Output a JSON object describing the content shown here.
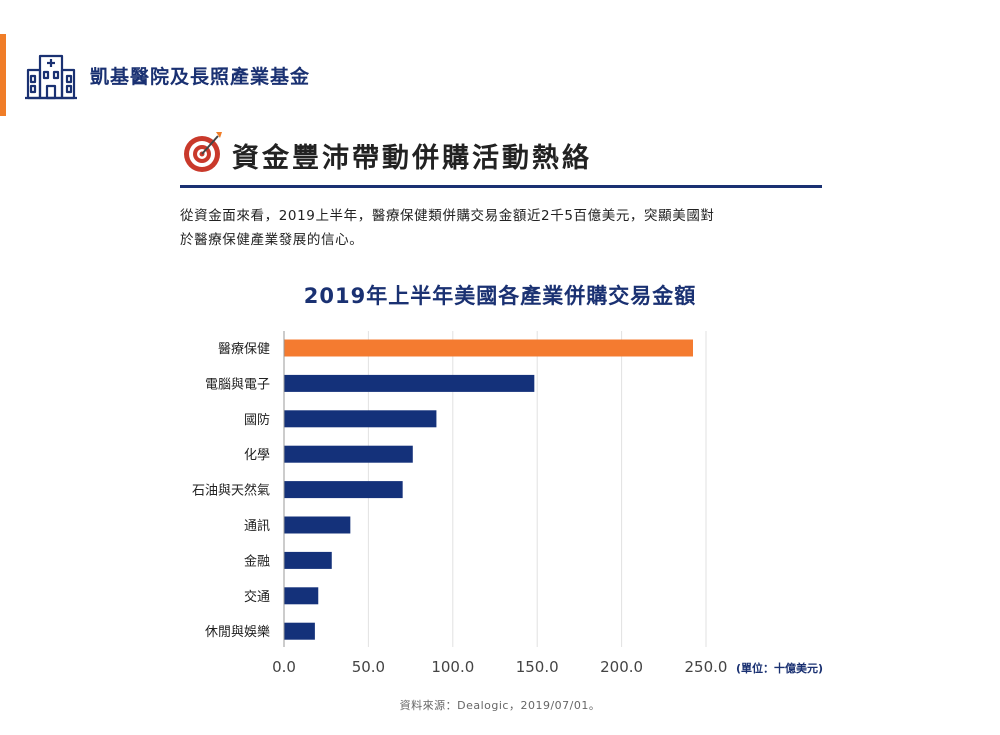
{
  "header": {
    "title": "凱基醫院及長照產業基金",
    "icon": "hospital-icon",
    "accent_color": "#f07d28",
    "brand_color": "#1a3172"
  },
  "section": {
    "title": "資金豐沛帶動併購活動熱絡",
    "icon": "target-icon",
    "intro_line1": "從資金面來看，2019上半年，醫療保健類併購交易金額近2千5百億美元，突顯美國對",
    "intro_line2": "於醫療保健產業發展的信心。"
  },
  "chart_data": {
    "type": "bar",
    "orientation": "horizontal",
    "title": "2019年上半年美國各產業併購交易金額",
    "unit_label": "(單位：十億美元)",
    "categories": [
      "醫療保健",
      "電腦與電子",
      "國防",
      "化學",
      "石油與天然氣",
      "通訊",
      "金融",
      "交通",
      "休閒與娛樂"
    ],
    "values": [
      242,
      148,
      90,
      76,
      70,
      39,
      28,
      20,
      18
    ],
    "highlight_index": 0,
    "highlight_color": "#f47b30",
    "bar_color": "#14317a",
    "xlim": [
      0,
      250
    ],
    "xticks": [
      0,
      50,
      100,
      150,
      200,
      250
    ],
    "xtick_labels": [
      "0.0",
      "50.0",
      "100.0",
      "150.0",
      "200.0",
      "250.0"
    ],
    "grid": true,
    "legend": "none"
  },
  "footer": {
    "source": "資料來源：Dealogic，2019/07/01。"
  }
}
